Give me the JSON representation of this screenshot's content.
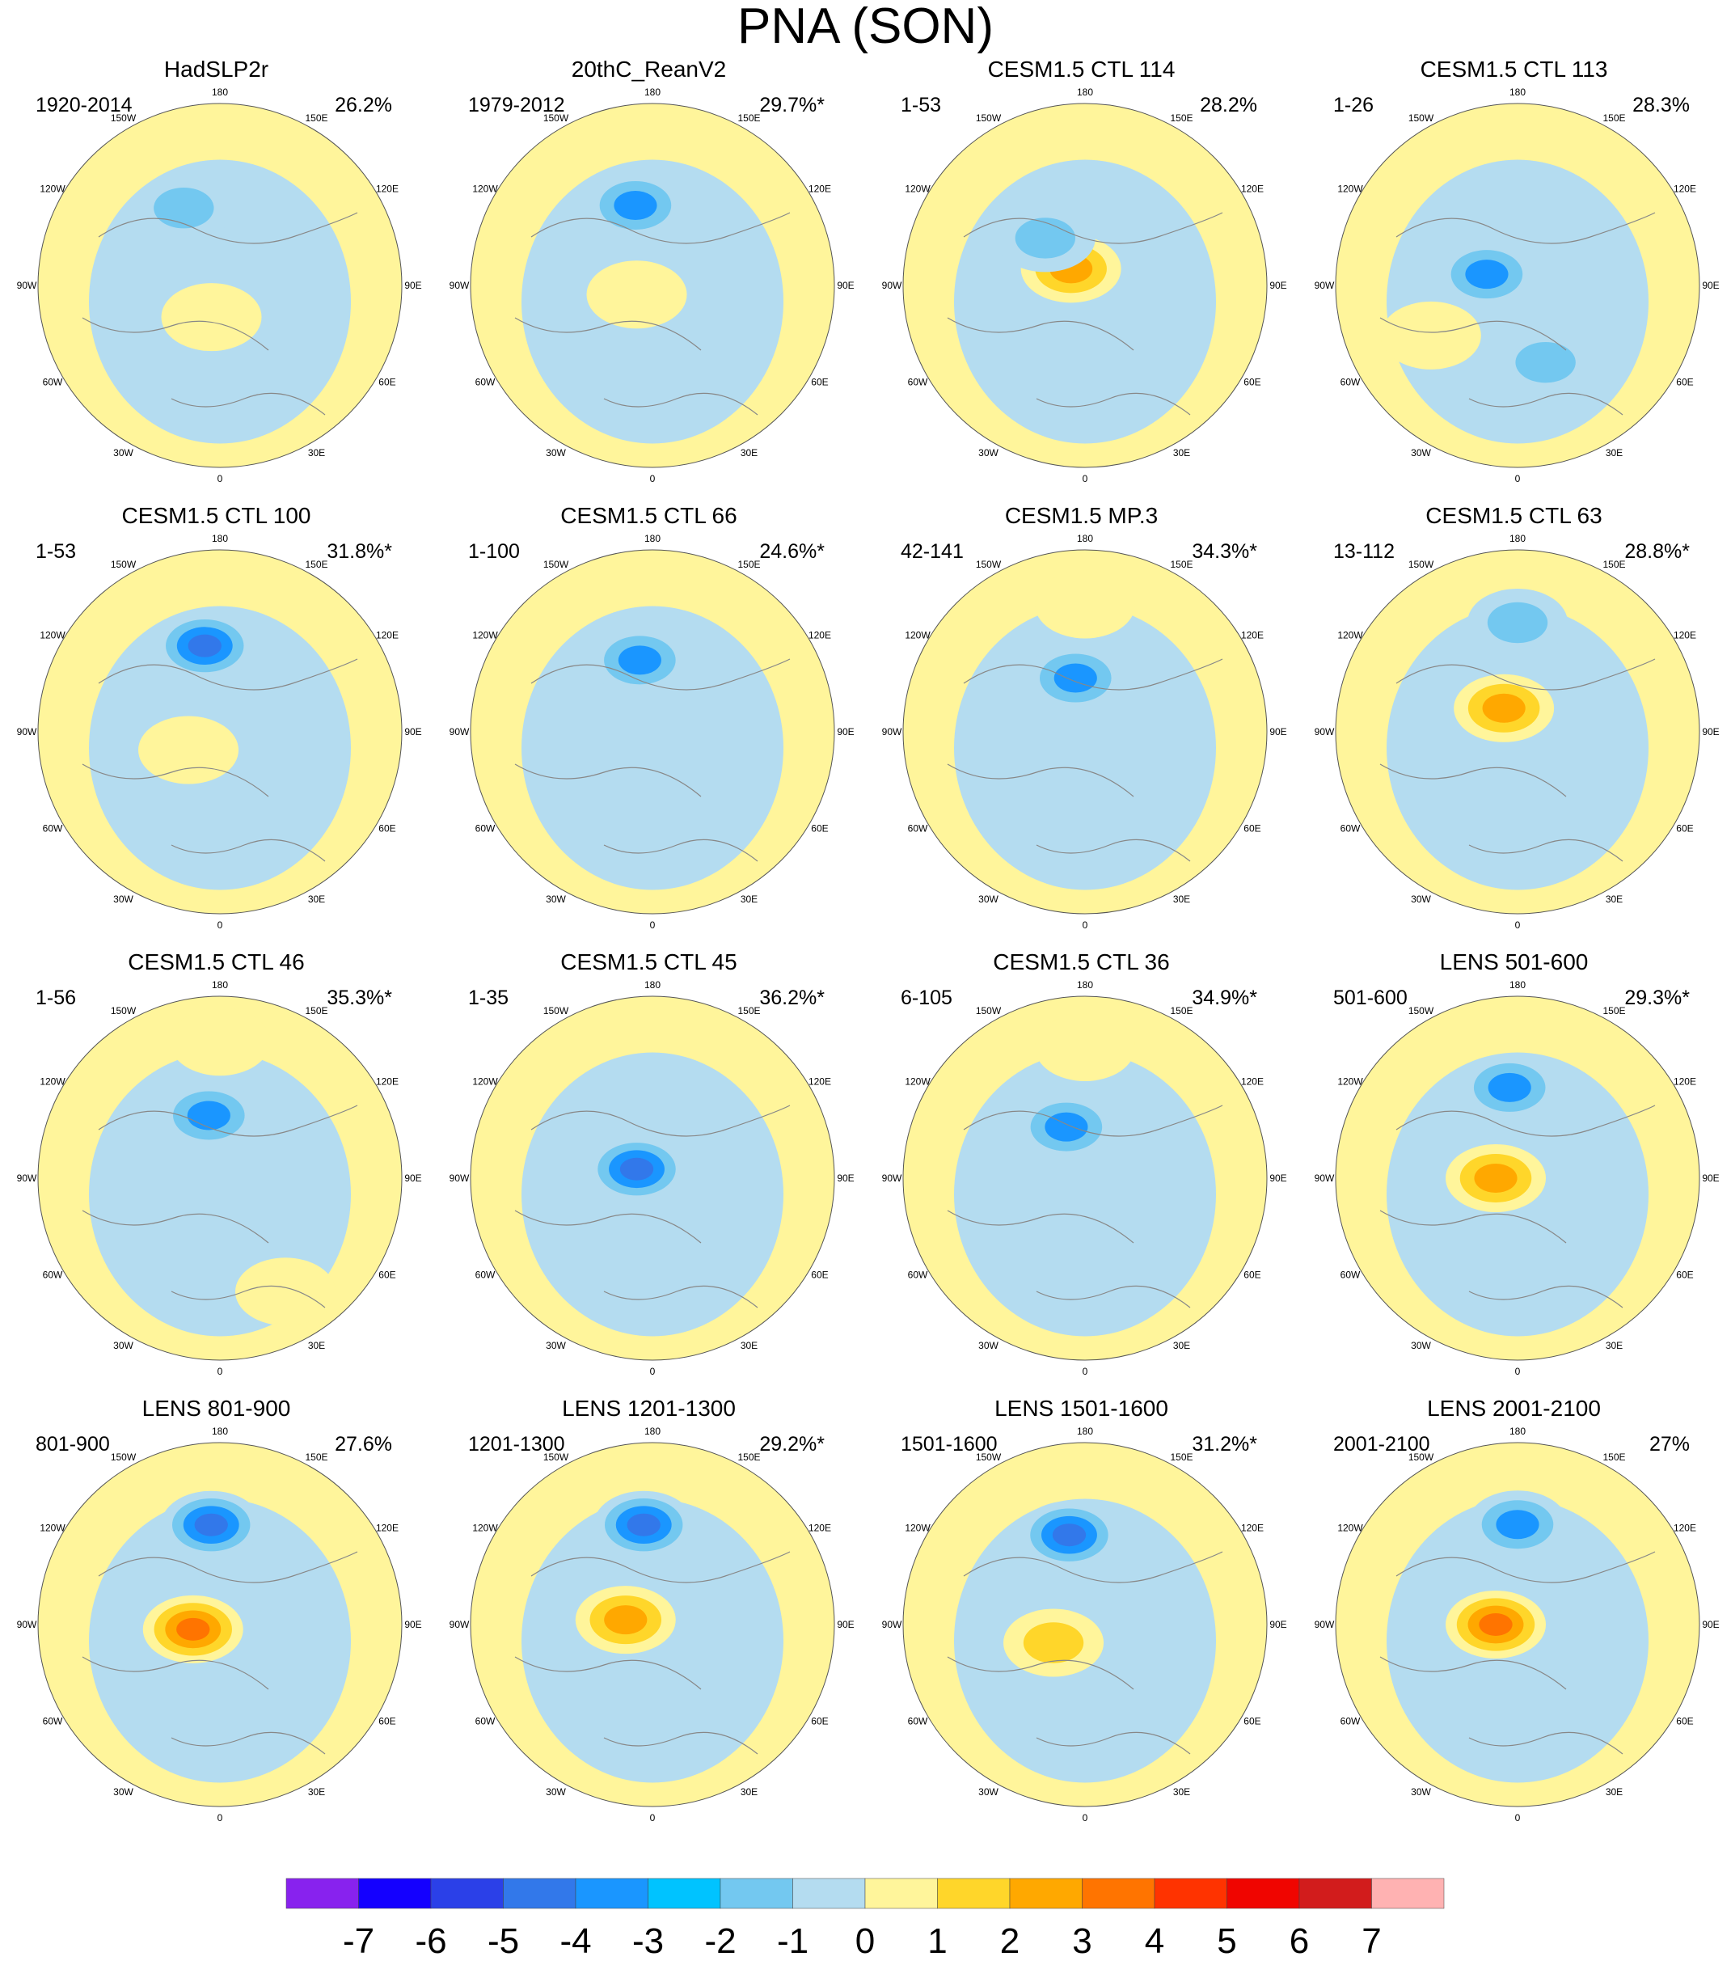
{
  "title": "PNA (SON)",
  "longitude_labels": [
    "180",
    "150E",
    "120E",
    "90E",
    "60E",
    "30E",
    "0",
    "30W",
    "60W",
    "90W",
    "120W",
    "150W"
  ],
  "panels": [
    {
      "title": "HadSLP2r",
      "period": "1920-2014",
      "percent": "26.2%",
      "features": [
        {
          "lon": 155,
          "r": 0.47,
          "level": -2
        },
        {
          "lon": 15,
          "r": 0.18,
          "level": 1
        }
      ]
    },
    {
      "title": "20thC_ReanV2",
      "period": "1979-2012",
      "percent": "29.7%*",
      "features": [
        {
          "lon": 168,
          "r": 0.45,
          "level": -3
        },
        {
          "lon": 60,
          "r": 0.1,
          "level": 1
        }
      ]
    },
    {
      "title": "CESM1.5 CTL 114",
      "period": "1-53",
      "percent": "28.2%",
      "features": [
        {
          "lon": 140,
          "r": 0.12,
          "level": 3
        },
        {
          "lon": 140,
          "r": 0.34,
          "level": -2
        }
      ]
    },
    {
      "title": "CESM1.5 CTL 113",
      "period": "1-26",
      "percent": "28.3%",
      "features": [
        {
          "lon": 110,
          "r": 0.18,
          "level": -3
        },
        {
          "lon": 340,
          "r": 0.45,
          "level": -2
        },
        {
          "lon": 60,
          "r": 0.55,
          "level": 1
        }
      ]
    },
    {
      "title": "CESM1.5 CTL 100",
      "period": "1-53",
      "percent": "31.8%*",
      "features": [
        {
          "lon": 170,
          "r": 0.48,
          "level": -4
        },
        {
          "lon": 60,
          "r": 0.2,
          "level": 1
        }
      ]
    },
    {
      "title": "CESM1.5 CTL 66",
      "period": "1-100",
      "percent": "24.6%*",
      "features": [
        {
          "lon": 170,
          "r": 0.4,
          "level": -3
        }
      ]
    },
    {
      "title": "CESM1.5 MP.3",
      "period": "42-141",
      "percent": "34.3%*",
      "features": [
        {
          "lon": 170,
          "r": 0.3,
          "level": -3
        },
        {
          "lon": 180,
          "r": 0.7,
          "level": 1
        }
      ]
    },
    {
      "title": "CESM1.5 CTL 63",
      "period": "13-112",
      "percent": "28.8%*",
      "features": [
        {
          "lon": 180,
          "r": 0.6,
          "level": -2
        },
        {
          "lon": 150,
          "r": 0.15,
          "level": 3
        }
      ]
    },
    {
      "title": "CESM1.5 CTL 46",
      "period": "1-56",
      "percent": "35.3%*",
      "features": [
        {
          "lon": 170,
          "r": 0.35,
          "level": -3
        },
        {
          "lon": 180,
          "r": 0.75,
          "level": 1
        },
        {
          "lon": 330,
          "r": 0.72,
          "level": 1
        }
      ]
    },
    {
      "title": "CESM1.5 CTL 45",
      "period": "1-35",
      "percent": "36.2%*",
      "features": [
        {
          "lon": 120,
          "r": 0.1,
          "level": -4
        }
      ]
    },
    {
      "title": "CESM1.5 CTL 36",
      "period": "6-105",
      "percent": "34.9%*",
      "features": [
        {
          "lon": 160,
          "r": 0.3,
          "level": -3
        },
        {
          "lon": 180,
          "r": 0.72,
          "level": 1
        }
      ]
    },
    {
      "title": "LENS 501-600",
      "period": "501-600",
      "percent": "29.3%*",
      "features": [
        {
          "lon": 175,
          "r": 0.5,
          "level": -3
        },
        {
          "lon": 90,
          "r": 0.12,
          "level": 3
        }
      ]
    },
    {
      "title": "LENS 801-900",
      "period": "801-900",
      "percent": "27.6%",
      "features": [
        {
          "lon": 175,
          "r": 0.55,
          "level": -4
        },
        {
          "lon": 80,
          "r": 0.15,
          "level": 4
        }
      ]
    },
    {
      "title": "LENS 1201-1300",
      "period": "1201-1300",
      "percent": "29.2%*",
      "features": [
        {
          "lon": 175,
          "r": 0.55,
          "level": -4
        },
        {
          "lon": 100,
          "r": 0.15,
          "level": 3
        }
      ]
    },
    {
      "title": "LENS 1501-1600",
      "period": "1501-1600",
      "percent": "31.2%*",
      "features": [
        {
          "lon": 170,
          "r": 0.5,
          "level": -4
        },
        {
          "lon": 60,
          "r": 0.2,
          "level": 2
        }
      ]
    },
    {
      "title": "LENS 2001-2100",
      "period": "2001-2100",
      "percent": "27%",
      "features": [
        {
          "lon": 180,
          "r": 0.55,
          "level": -3
        },
        {
          "lon": 90,
          "r": 0.12,
          "level": 4
        }
      ]
    }
  ],
  "colorbar": {
    "labels": [
      "-7",
      "-6",
      "-5",
      "-4",
      "-3",
      "-2",
      "-1",
      "0",
      "1",
      "2",
      "3",
      "4",
      "5",
      "6",
      "7"
    ],
    "colors": [
      "#8822ee",
      "#1400ff",
      "#2b40e8",
      "#3278ea",
      "#1a96ff",
      "#00c3ff",
      "#73c8f0",
      "#b4dcf0",
      "#fff59b",
      "#ffd62a",
      "#ffa800",
      "#ff7400",
      "#ff3300",
      "#f00500",
      "#d21c1c",
      "#ffb2b2"
    ]
  },
  "level_colors": {
    "-4": "#3278ea",
    "-3": "#1a96ff",
    "-2": "#73c8f0",
    "-1": "#b4dcf0",
    "1": "#fff59b",
    "2": "#ffd62a",
    "3": "#ffa800",
    "4": "#ff7400"
  }
}
